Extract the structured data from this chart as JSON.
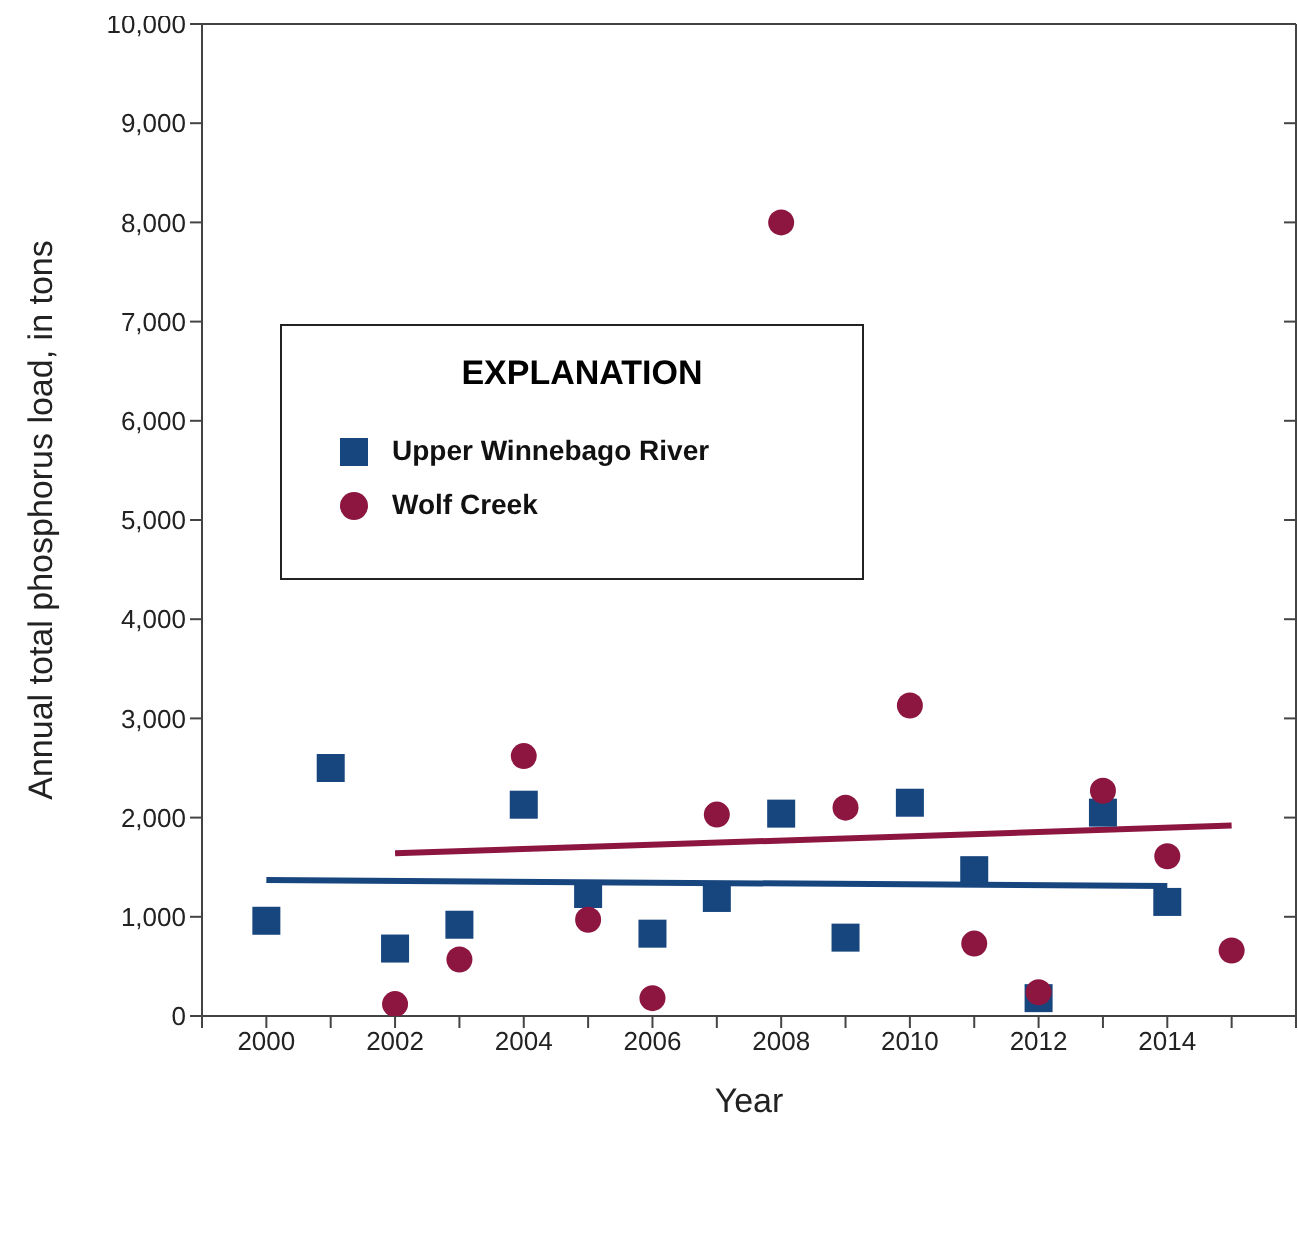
{
  "chart_data": {
    "type": "scatter",
    "xlabel": "Year",
    "ylabel": "Annual total phosphorus load, in tons",
    "legend_title": "EXPLANATION",
    "legend": "left",
    "xlim": [
      1999,
      2016
    ],
    "xticks": [
      {
        "value": 1999,
        "label": null
      },
      2000,
      {
        "value": 2001,
        "label": null
      },
      2002,
      {
        "value": 2003,
        "label": null
      },
      2004,
      {
        "value": 2005,
        "label": null
      },
      2006,
      {
        "value": 2007,
        "label": null
      },
      2008,
      {
        "value": 2009,
        "label": null
      },
      2010,
      {
        "value": 2011,
        "label": null
      },
      2012,
      {
        "value": 2013,
        "label": null
      },
      2014,
      {
        "value": 2015,
        "label": null
      },
      {
        "value": 2016,
        "label": null
      }
    ],
    "ylim": [
      0,
      10000
    ],
    "yticks": [
      {
        "value": 0,
        "label": "0"
      },
      {
        "value": 1000,
        "label": "1,000"
      },
      {
        "value": 2000,
        "label": "2,000"
      },
      {
        "value": 3000,
        "label": "3,000"
      },
      {
        "value": 4000,
        "label": "4,000"
      },
      {
        "value": 5000,
        "label": "5,000"
      },
      {
        "value": 6000,
        "label": "6,000"
      },
      {
        "value": 7000,
        "label": "7,000"
      },
      {
        "value": 8000,
        "label": "8,000"
      },
      {
        "value": 9000,
        "label": "9,000"
      },
      {
        "value": 10000,
        "label": "10,000"
      }
    ],
    "series": [
      {
        "name": "Upper Winnebago River",
        "color": "#17457e",
        "marker": "square",
        "x": [
          2000,
          2001,
          2002,
          2003,
          2004,
          2005,
          2006,
          2007,
          2008,
          2009,
          2010,
          2011,
          2012,
          2013,
          2014
        ],
        "values": [
          960,
          2500,
          680,
          920,
          2130,
          1230,
          830,
          1190,
          2040,
          790,
          2150,
          1470,
          180,
          2050,
          1150
        ]
      },
      {
        "name": "Wolf Creek",
        "color": "#8c1640",
        "marker": "circle",
        "x": [
          2002,
          2003,
          2004,
          2005,
          2006,
          2007,
          2008,
          2009,
          2010,
          2011,
          2012,
          2013,
          2014,
          2015
        ],
        "values": [
          120,
          570,
          2620,
          970,
          180,
          2030,
          8000,
          2100,
          3130,
          730,
          240,
          2270,
          1610,
          660
        ]
      },
      {
        "type": "line",
        "color": "#17457e",
        "marker": "none",
        "x": [
          2000,
          2014
        ],
        "values": [
          1370,
          1310
        ]
      },
      {
        "type": "line",
        "color": "#8c1640",
        "marker": "none",
        "x": [
          2002,
          2015
        ],
        "values": [
          1640,
          1920
        ]
      }
    ]
  }
}
